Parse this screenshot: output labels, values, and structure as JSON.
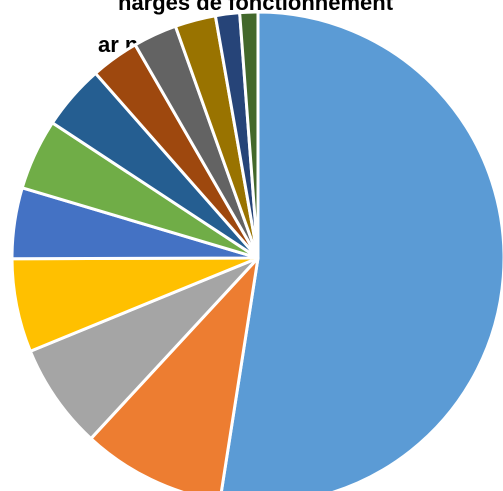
{
  "chart_data": {
    "type": "pie",
    "title_lines": [
      "harges de fonctionnement",
      "ar nature"
    ],
    "slices": [
      {
        "value": 53.0,
        "color": "#5b9bd5"
      },
      {
        "value": 9.5,
        "color": "#ed7d31"
      },
      {
        "value": 7.0,
        "color": "#a5a5a5"
      },
      {
        "value": 6.2,
        "color": "#ffc000"
      },
      {
        "value": 4.7,
        "color": "#4472c4"
      },
      {
        "value": 4.7,
        "color": "#70ad47"
      },
      {
        "value": 4.3,
        "color": "#255e91"
      },
      {
        "value": 3.2,
        "color": "#9e480e"
      },
      {
        "value": 2.9,
        "color": "#636363"
      },
      {
        "value": 2.7,
        "color": "#997300"
      },
      {
        "value": 1.6,
        "color": "#264478"
      },
      {
        "value": 1.2,
        "color": "#43682b"
      }
    ],
    "start_angle_deg": 0,
    "direction": "clockwise",
    "legend": "none",
    "data_labels": "none"
  }
}
